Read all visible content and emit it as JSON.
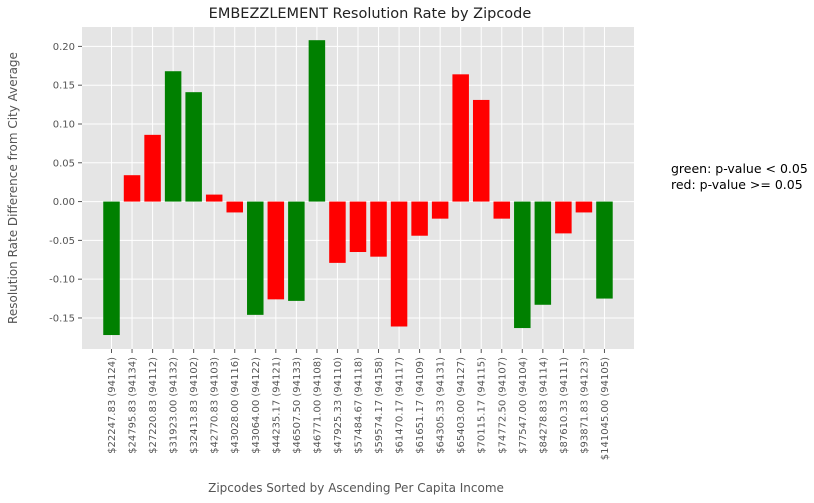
{
  "chart_data": {
    "type": "bar",
    "title": "EMBEZZLEMENT Resolution Rate by Zipcode",
    "xlabel": "Zipcodes Sorted by Ascending Per Capita Income",
    "ylabel": "Resolution Rate Difference from City Average",
    "ylim": [
      -0.19,
      0.225
    ],
    "yticks": [
      "0.20",
      "0.15",
      "0.10",
      "0.05",
      "0.00",
      "-0.05",
      "-0.10",
      "-0.15"
    ],
    "ytick_values": [
      0.2,
      0.15,
      0.1,
      0.05,
      0.0,
      -0.05,
      -0.1,
      -0.15
    ],
    "grid": true,
    "categories": [
      "$22247.83 (94124)",
      "$24795.83 (94134)",
      "$27220.83 (94112)",
      "$31923.00 (94132)",
      "$32413.83 (94102)",
      "$42770.83 (94103)",
      "$43028.00 (94116)",
      "$43064.00 (94122)",
      "$44235.17 (94121)",
      "$46507.50 (94133)",
      "$46771.00 (94108)",
      "$47925.33 (94110)",
      "$57484.67 (94118)",
      "$59574.17 (94158)",
      "$61470.17 (94117)",
      "$61651.17 (94109)",
      "$64305.33 (94131)",
      "$65403.00 (94127)",
      "$70115.17 (94115)",
      "$74772.50 (94107)",
      "$77547.00 (94104)",
      "$84278.83 (94114)",
      "$87610.33 (94111)",
      "$93871.83 (94123)",
      "$141045.00 (94105)"
    ],
    "values": [
      -0.172,
      0.034,
      0.086,
      0.168,
      0.141,
      0.009,
      -0.014,
      -0.146,
      -0.126,
      -0.128,
      0.208,
      -0.079,
      -0.065,
      -0.071,
      -0.161,
      -0.044,
      -0.022,
      0.164,
      0.131,
      -0.022,
      -0.163,
      -0.133,
      -0.041,
      -0.014,
      -0.125
    ],
    "significant": [
      true,
      false,
      false,
      true,
      true,
      false,
      false,
      true,
      false,
      true,
      true,
      false,
      false,
      false,
      false,
      false,
      false,
      false,
      false,
      false,
      true,
      true,
      false,
      false,
      true
    ],
    "colors": {
      "significant": "#008000",
      "not_significant": "#ff0000",
      "plot_background": "#e5e5e5",
      "grid": "#ffffff"
    },
    "annotation": [
      "green: p-value < 0.05",
      "red: p-value >= 0.05"
    ]
  }
}
